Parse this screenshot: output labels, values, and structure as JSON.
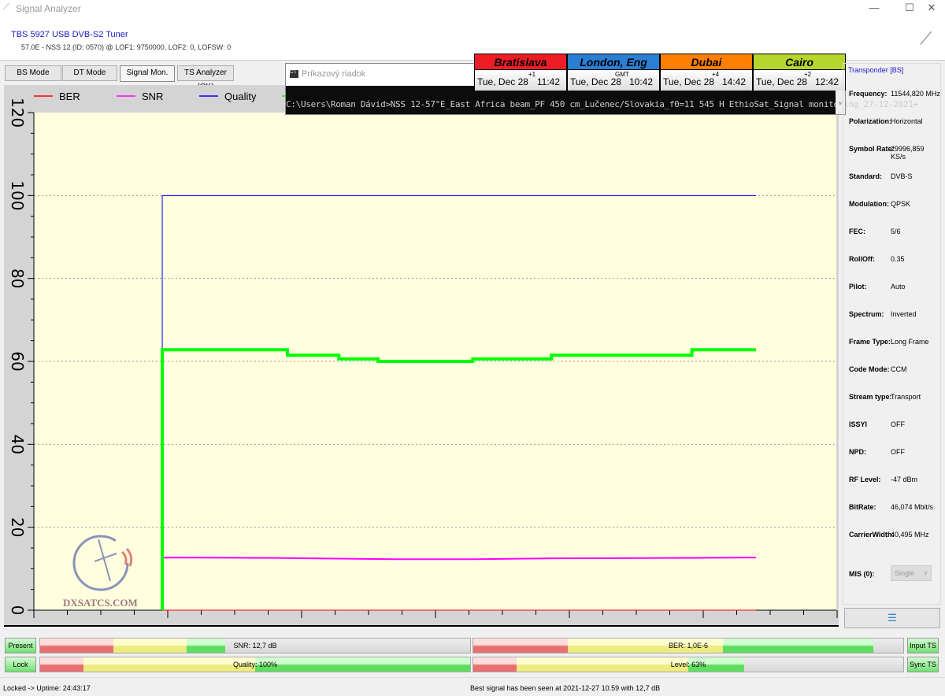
{
  "window": {
    "title": "Signal Analyzer",
    "minimize": "—",
    "maximize": "☐",
    "close": "✕"
  },
  "header": {
    "device": "TBS 5927 USB DVB-S2 Tuner",
    "satellite": "57.0E - NSS 12 (ID: 0570) @ LOF1: 9750000, LOF2: 0, LOFSW: 0"
  },
  "tabs": [
    {
      "label": "BS Mode"
    },
    {
      "label": "DT Mode"
    },
    {
      "label": "Signal Mon.",
      "active": true
    },
    {
      "label": "TS Analyzer (OK)"
    }
  ],
  "console": {
    "title": "Príkazový riadok",
    "text": "C:\\Users\\Roman Dávid>NSS 12-57°E_East Africa beam_PF 450 cm_Lučenec/Slovakia_f0=11 545 H EthioSat_Signal monitoring_27-12-2021+"
  },
  "clocks": [
    {
      "city": "Bratislava",
      "date": "Tue, Dec 28",
      "offset": "+1",
      "time": "11:42",
      "color": "#ee1c25"
    },
    {
      "city": "London, Eng",
      "date": "Tue, Dec 28",
      "offset": "GMT",
      "time": "10:42",
      "color": "#2a7fd4"
    },
    {
      "city": "Dubai",
      "date": "Tue, Dec 28",
      "offset": "+4",
      "time": "14:42",
      "color": "#ff7f00"
    },
    {
      "city": "Cairo",
      "date": "Tue, Dec 28",
      "offset": "+2",
      "time": "12:42",
      "color": "#b5d62c"
    }
  ],
  "transponder": {
    "title": "Transponder [BS]",
    "fields": [
      {
        "label": "Frequency:",
        "value": "11544,820 MHz"
      },
      {
        "label": "Polarization:",
        "value": "Horizontal"
      },
      {
        "label": "Symbol Rate:",
        "value": "29996,859 KS/s"
      },
      {
        "label": "Standard:",
        "value": "DVB-S"
      },
      {
        "label": "Modulation:",
        "value": "QPSK"
      },
      {
        "label": "FEC:",
        "value": "5/6"
      },
      {
        "label": "RollOff:",
        "value": "0.35"
      },
      {
        "label": "Pilot:",
        "value": "Auto"
      },
      {
        "label": "Spectrum:",
        "value": "Inverted"
      },
      {
        "label": "Frame Type:",
        "value": "Long Frame"
      },
      {
        "label": "Code Mode:",
        "value": "CCM"
      },
      {
        "label": "Stream type:",
        "value": "Transport"
      },
      {
        "label": "ISSYI",
        "value": "OFF"
      },
      {
        "label": "NPD:",
        "value": "OFF"
      },
      {
        "label": "RF Level:",
        "value": "-47 dBm"
      },
      {
        "label": "BitRate:",
        "value": "46,074 Mbit/s"
      },
      {
        "label": "CarrierWidth:",
        "value": "40,495 MHz"
      }
    ],
    "mis_label": "MIS (0):",
    "mis_value": "Single"
  },
  "logo": "DXSATCS.COM",
  "meters": {
    "present": "Present",
    "lock": "Lock",
    "input_ts": "Input TS",
    "sync_ts": "Sync TS",
    "snr": {
      "label": "SNR: 12,7 dB",
      "fill": 0.43
    },
    "ber": {
      "label": "BER: 1,0E-6",
      "fill": 0.93
    },
    "quality": {
      "label": "Quality: 100%",
      "fill": 1.0
    },
    "level": {
      "label": "Level: 63%",
      "fill": 0.63
    }
  },
  "status": {
    "left": "Locked -> Uptime: 24:43:17",
    "center": "Best signal has been seen at 2021-12-27 10.59 with 12,7 dB"
  },
  "chart_data": {
    "type": "line",
    "ylim": [
      0,
      120
    ],
    "yticks": [
      "0",
      "20",
      "40",
      "60",
      "80",
      "100",
      "120"
    ],
    "xlim": [
      0,
      100
    ],
    "grid": true,
    "legend_placement": "top-left",
    "series": [
      {
        "name": "BER",
        "color": "#ff0000",
        "x": [
          16,
          90
        ],
        "y": [
          0,
          0
        ]
      },
      {
        "name": "SNR",
        "color": "#ff00ff",
        "x": [
          16,
          30,
          40,
          45,
          55,
          65,
          80,
          90
        ],
        "y": [
          12.7,
          12.6,
          12.4,
          12.3,
          12.3,
          12.5,
          12.6,
          12.7
        ]
      },
      {
        "name": "Quality",
        "color": "#0000ff",
        "x": [
          16,
          90
        ],
        "y": [
          100,
          100
        ]
      },
      {
        "name": "Level",
        "color": "#00ff00",
        "x": [
          16,
          31.6,
          31.6,
          38,
          38,
          42.9,
          42.9,
          54.7,
          54.7,
          64.5,
          64.5,
          82,
          82,
          90
        ],
        "y": [
          62.8,
          62.8,
          61.5,
          61.5,
          60.6,
          60.6,
          60,
          60,
          60.6,
          60.6,
          61.5,
          61.5,
          62.8,
          62.8
        ]
      }
    ]
  }
}
